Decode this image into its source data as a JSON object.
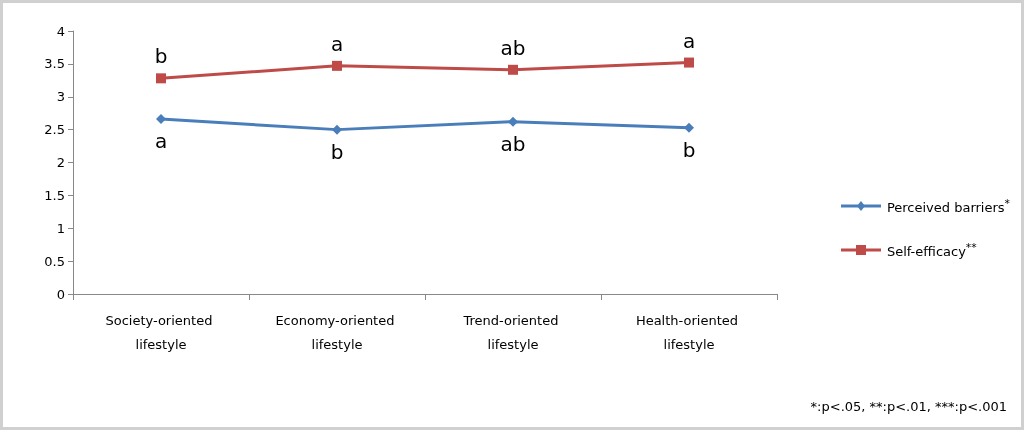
{
  "chart_data": {
    "type": "line",
    "categories": [
      "Society-oriented lifestyle",
      "Economy-oriented lifestyle",
      "Trend-oriented lifestyle",
      "Health-oriented lifestyle"
    ],
    "series": [
      {
        "name": "Perceived barriers$^{*}$",
        "color": "#4a7ebb",
        "marker": "diamond",
        "values": [
          2.66,
          2.5,
          2.62,
          2.53
        ]
      },
      {
        "name": "Self-efficacy$^{**}$",
        "color": "#be4b48",
        "marker": "square",
        "values": [
          3.28,
          3.47,
          3.41,
          3.52
        ]
      }
    ],
    "ylim": [
      0,
      4
    ],
    "yticks": [
      0,
      0.5,
      1,
      1.5,
      2,
      2.5,
      3,
      3.5,
      4
    ],
    "grid": false,
    "legend": "right",
    "annotations": [
      {
        "text": "b",
        "x": "Society-oriented lifestyle",
        "y": 3.28
      },
      {
        "text": "a",
        "x": "Economy-oriented lifestyle",
        "y": 3.47
      },
      {
        "text": "ab",
        "x": "Trend-oriented lifestyle",
        "y": 3.41
      },
      {
        "text": "a",
        "x": "Health-oriented lifestyle",
        "y": 3.52
      },
      {
        "text": "a",
        "x": "Society-oriented lifestyle",
        "y": 2.66
      },
      {
        "text": "b",
        "x": "Economy-oriented lifestyle",
        "y": 2.5
      },
      {
        "text": "ab",
        "x": "Trend-oriented lifestyle",
        "y": 2.62
      },
      {
        "text": "b",
        "x": "Health-oriented lifestyle",
        "y": 2.53
      },
      "*:p<.05, **:p<.01, ***:p<.001"
    ]
  }
}
